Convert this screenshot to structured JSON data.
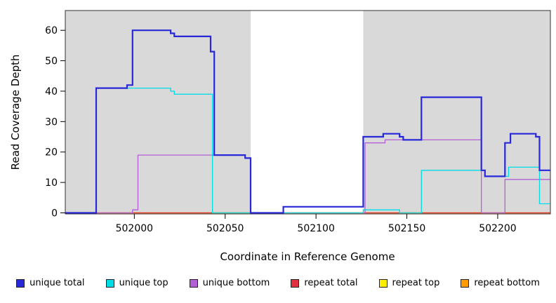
{
  "chart_data": {
    "type": "line",
    "subtype": "step-coverage",
    "title": "",
    "xlabel": "Coordinate in Reference Genome",
    "ylabel": "Read Coverage Depth",
    "xlim": [
      501962,
      502229
    ],
    "ylim": [
      0,
      66.5
    ],
    "xticks": [
      502000,
      502050,
      502100,
      502150,
      502200
    ],
    "yticks": [
      0,
      10,
      20,
      30,
      40,
      50,
      60
    ],
    "grid": false,
    "plot_background": "#d9d9d9",
    "border_color": "#333333",
    "highlight_band": {
      "x0": 502064,
      "x1": 502126,
      "color": "#ffffff"
    },
    "legend_position": "bottom",
    "series": [
      {
        "name": "repeat top",
        "color": "#ffee00",
        "line_width": 1.3,
        "points": [
          [
            501962,
            0
          ],
          [
            502229,
            0
          ]
        ]
      },
      {
        "name": "repeat bottom",
        "color": "#ff9d00",
        "line_width": 1.6,
        "points": [
          [
            501962,
            0
          ],
          [
            502229,
            0
          ]
        ]
      },
      {
        "name": "repeat total",
        "color": "#e03140",
        "line_width": 1.3,
        "points": [
          [
            501962,
            0
          ],
          [
            502229,
            0
          ]
        ]
      },
      {
        "name": "unique bottom",
        "color": "#b35fd6",
        "line_width": 1.3,
        "points": [
          [
            501962,
            0
          ],
          [
            501999,
            1
          ],
          [
            502002,
            19
          ],
          [
            502061,
            18
          ],
          [
            502064,
            0
          ],
          [
            502127,
            23
          ],
          [
            502138,
            24
          ],
          [
            502191,
            0
          ],
          [
            502204,
            11
          ],
          [
            502229,
            11
          ]
        ]
      },
      {
        "name": "unique top",
        "color": "#00dde6",
        "line_width": 1.3,
        "points": [
          [
            501962,
            0
          ],
          [
            501979,
            41
          ],
          [
            502020,
            40
          ],
          [
            502022,
            39
          ],
          [
            502043,
            0
          ],
          [
            502126,
            1
          ],
          [
            502146,
            0
          ],
          [
            502158,
            14
          ],
          [
            502193,
            12
          ],
          [
            502206,
            15
          ],
          [
            502223,
            3
          ],
          [
            502229,
            3
          ]
        ]
      },
      {
        "name": "unique total",
        "color": "#2828d8",
        "line_width": 2.2,
        "points": [
          [
            501962,
            0
          ],
          [
            501979,
            41
          ],
          [
            501996,
            42
          ],
          [
            501999,
            60
          ],
          [
            502020,
            59
          ],
          [
            502022,
            58
          ],
          [
            502042,
            53
          ],
          [
            502044,
            19
          ],
          [
            502061,
            18
          ],
          [
            502064,
            0
          ],
          [
            502082,
            2
          ],
          [
            502126,
            25
          ],
          [
            502137,
            26
          ],
          [
            502146,
            25
          ],
          [
            502148,
            24
          ],
          [
            502158,
            38
          ],
          [
            502191,
            14
          ],
          [
            502193,
            12
          ],
          [
            502204,
            23
          ],
          [
            502207,
            26
          ],
          [
            502221,
            25
          ],
          [
            502223,
            14
          ],
          [
            502229,
            14
          ]
        ]
      }
    ],
    "legend_order": [
      "unique total",
      "unique top",
      "unique bottom",
      "repeat total",
      "repeat top",
      "repeat bottom"
    ]
  }
}
